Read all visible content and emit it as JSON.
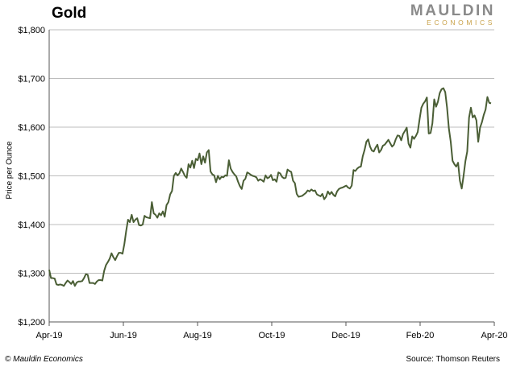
{
  "header": {
    "title": "Gold"
  },
  "logo": {
    "main": "MAULDIN",
    "sub": "ECONOMICS"
  },
  "footer": {
    "copyright": "© Mauldin Economics",
    "source": "Source: Thomson Reuters"
  },
  "chart_data": {
    "type": "line",
    "title": "Gold",
    "ylabel": "Price per Ounce",
    "xlabel": "",
    "y_ticks": [
      "$1,200",
      "$1,300",
      "$1,400",
      "$1,500",
      "$1,600",
      "$1,700",
      "$1,800"
    ],
    "ylim": [
      1200,
      1800
    ],
    "x_ticks": [
      "Apr-19",
      "Jun-19",
      "Aug-19",
      "Oct-19",
      "Dec-19",
      "Feb-20",
      "Apr-20"
    ],
    "grid": "horizontal",
    "line_color": "#4a5e35",
    "series": [
      {
        "values": [
          1307,
          1290,
          1290,
          1289,
          1277,
          1276,
          1277,
          1276,
          1274,
          1280,
          1285,
          1282,
          1278,
          1284,
          1274,
          1281,
          1283,
          1283,
          1284,
          1290,
          1298,
          1297,
          1280,
          1280,
          1280,
          1278,
          1283,
          1286,
          1286,
          1285,
          1305,
          1317,
          1323,
          1330,
          1341,
          1333,
          1327,
          1335,
          1342,
          1342,
          1340,
          1360,
          1387,
          1410,
          1405,
          1420,
          1405,
          1410,
          1413,
          1399,
          1398,
          1400,
          1418,
          1415,
          1414,
          1413,
          1446,
          1423,
          1420,
          1414,
          1423,
          1419,
          1427,
          1416,
          1440,
          1446,
          1462,
          1469,
          1500,
          1506,
          1501,
          1505,
          1515,
          1508,
          1500,
          1496,
          1524,
          1517,
          1531,
          1516,
          1535,
          1532,
          1546,
          1524,
          1540,
          1527,
          1548,
          1553,
          1509,
          1503,
          1501,
          1487,
          1500,
          1493,
          1498,
          1497,
          1501,
          1500,
          1532,
          1515,
          1508,
          1503,
          1499,
          1488,
          1479,
          1473,
          1490,
          1494,
          1507,
          1505,
          1502,
          1500,
          1499,
          1497,
          1490,
          1493,
          1491,
          1488,
          1501,
          1495,
          1497,
          1502,
          1491,
          1493,
          1488,
          1507,
          1505,
          1498,
          1495,
          1496,
          1513,
          1510,
          1508,
          1490,
          1485,
          1463,
          1457,
          1458,
          1459,
          1462,
          1465,
          1470,
          1468,
          1472,
          1469,
          1470,
          1462,
          1460,
          1458,
          1463,
          1452,
          1457,
          1468,
          1462,
          1467,
          1461,
          1458,
          1468,
          1473,
          1475,
          1476,
          1478,
          1480,
          1476,
          1474,
          1480,
          1512,
          1510,
          1515,
          1518,
          1519,
          1540,
          1553,
          1570,
          1575,
          1560,
          1552,
          1550,
          1558,
          1564,
          1548,
          1553,
          1562,
          1564,
          1569,
          1574,
          1567,
          1560,
          1564,
          1575,
          1583,
          1582,
          1573,
          1586,
          1592,
          1599,
          1566,
          1558,
          1581,
          1576,
          1582,
          1590,
          1616,
          1640,
          1648,
          1653,
          1661,
          1587,
          1588,
          1608,
          1657,
          1642,
          1652,
          1670,
          1678,
          1680,
          1672,
          1640,
          1597,
          1570,
          1531,
          1524,
          1519,
          1527,
          1490,
          1474,
          1500,
          1530,
          1550,
          1620,
          1640,
          1620,
          1624,
          1614,
          1570,
          1599,
          1610,
          1625,
          1636,
          1662,
          1650,
          1649
        ]
      }
    ]
  }
}
